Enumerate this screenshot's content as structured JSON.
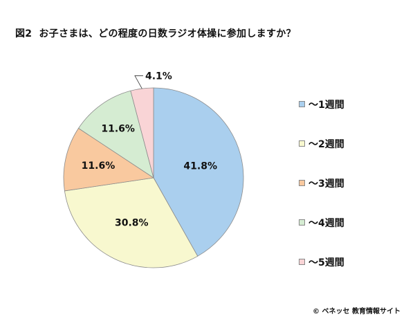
{
  "figure_label": "図2",
  "title": "お子さまは、どの程度の日数ラジオ体操に参加しますか？",
  "copyright": "© ベネッセ 教育情報サイト",
  "chart_data": {
    "type": "pie",
    "start_angle_deg": 0,
    "direction": "clockwise",
    "slices": [
      {
        "label": "～1週間",
        "value": 41.8,
        "display": "41.8%",
        "color": "#aacfee"
      },
      {
        "label": "～2週間",
        "value": 30.8,
        "display": "30.8%",
        "color": "#f8f8cf"
      },
      {
        "label": "～3週間",
        "value": 11.6,
        "display": "11.6%",
        "color": "#f9c99f"
      },
      {
        "label": "～4週間",
        "value": 11.6,
        "display": "11.6%",
        "color": "#d5ecd2"
      },
      {
        "label": "～5週間",
        "value": 4.1,
        "display": "4.1%",
        "color": "#f9d4d6"
      }
    ],
    "legend_position": "right"
  }
}
